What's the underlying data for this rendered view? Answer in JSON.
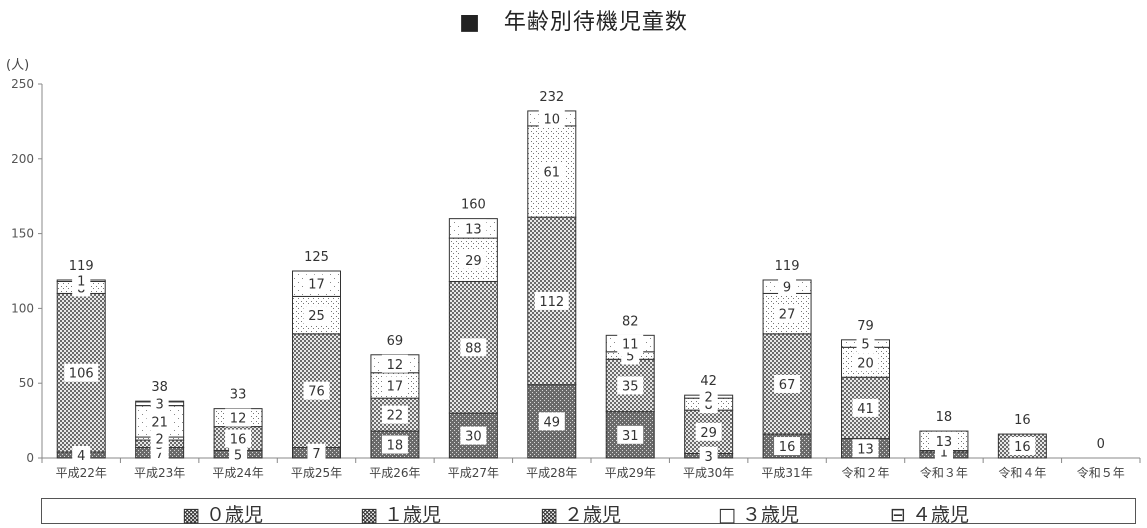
{
  "title": "■　年齢別待機児童数",
  "chart_data": {
    "type": "bar",
    "stacked": true,
    "title": "■　年齢別待機児童数",
    "ylabel": "(人)",
    "ylim": [
      0,
      250
    ],
    "yticks": [
      0,
      50,
      100,
      150,
      200,
      250
    ],
    "grid": false,
    "legend_position": "bottom",
    "categories": [
      "平成22年",
      "平成23年",
      "平成24年",
      "平成25年",
      "平成26年",
      "平成27年",
      "平成28年",
      "平成29年",
      "平成30年",
      "平成31年",
      "令和２年",
      "令和３年",
      "令和４年",
      "令和５年"
    ],
    "totals": [
      119,
      38,
      33,
      125,
      69,
      160,
      232,
      82,
      42,
      119,
      79,
      18,
      16,
      0
    ],
    "series": [
      {
        "name": "0歳児",
        "values": [
          4,
          7,
          5,
          7,
          18,
          30,
          49,
          31,
          3,
          16,
          13,
          4,
          0,
          0
        ]
      },
      {
        "name": "1歳児",
        "values": [
          106,
          5,
          16,
          76,
          22,
          88,
          112,
          35,
          29,
          67,
          41,
          1,
          16,
          0
        ]
      },
      {
        "name": "2歳児",
        "values": [
          8,
          2,
          12,
          25,
          17,
          29,
          61,
          5,
          8,
          27,
          20,
          13,
          0,
          0
        ]
      },
      {
        "name": "3歳児",
        "values": [
          1,
          21,
          0,
          17,
          12,
          13,
          10,
          11,
          2,
          9,
          5,
          0,
          0,
          0
        ]
      },
      {
        "name": "4歳児",
        "values": [
          0,
          3,
          0,
          0,
          0,
          0,
          0,
          0,
          0,
          0,
          0,
          0,
          0,
          0
        ]
      }
    ]
  },
  "legend": [
    {
      "symbol": "▩",
      "label": "０歳児"
    },
    {
      "symbol": "▩",
      "label": "１歳児"
    },
    {
      "symbol": "▩",
      "label": "２歳児"
    },
    {
      "symbol": "□",
      "label": "３歳児"
    },
    {
      "symbol": "⊟",
      "label": "４歳児"
    }
  ]
}
